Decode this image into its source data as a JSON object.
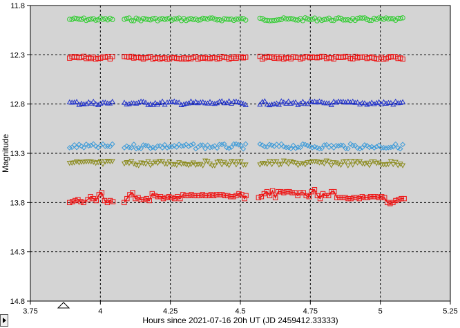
{
  "chart_data": {
    "type": "scatter",
    "xlabel": "Hours since 2021-07-16 20h UT (JD 2459412.33333)",
    "ylabel": "Magnitude",
    "xlim": [
      3.75,
      5.25
    ],
    "ylim": [
      14.8,
      11.8
    ],
    "y_inverted": true,
    "x_ticks": [
      "3.75",
      "4",
      "4.25",
      "4.5",
      "4.75",
      "5",
      "5.25"
    ],
    "y_ticks": [
      "11.8",
      "12.3",
      "12.8",
      "13.3",
      "13.8",
      "14.3",
      "14.8"
    ],
    "grid": true,
    "background_color": "#d4d4d4",
    "x_start": 3.89,
    "x_end": 5.085,
    "x_step": 0.0085,
    "gaps": [
      [
        4.05,
        4.085
      ],
      [
        4.52,
        4.565
      ]
    ],
    "series": [
      {
        "marker": "circle",
        "color": "#2ecc2e",
        "base": 11.94,
        "jitter": 0.015,
        "line": false
      },
      {
        "marker": "square",
        "color": "#ee1111",
        "base": 12.33,
        "jitter": 0.015,
        "line": false
      },
      {
        "marker": "triangle",
        "color": "#2233cc",
        "base": 12.79,
        "jitter": 0.02,
        "line": false
      },
      {
        "marker": "diamond",
        "color": "#3a9ad9",
        "base": 13.23,
        "jitter": 0.025,
        "line": false
      },
      {
        "marker": "triangle-down",
        "color": "#8a8a1a",
        "base": 13.4,
        "jitter": 0.025,
        "line": false
      },
      {
        "marker": "square",
        "color": "#ee1111",
        "line": true,
        "points": [
          [
            3.89,
            13.8
          ],
          [
            3.9,
            13.79
          ],
          [
            3.91,
            13.78
          ],
          [
            3.92,
            13.77
          ],
          [
            3.93,
            13.79
          ],
          [
            3.94,
            13.8
          ],
          [
            3.955,
            13.77
          ],
          [
            3.965,
            13.74
          ],
          [
            3.975,
            13.76
          ],
          [
            3.985,
            13.78
          ],
          [
            3.995,
            13.72
          ],
          [
            4.005,
            13.7
          ],
          [
            4.015,
            13.78
          ],
          [
            4.025,
            13.8
          ],
          [
            4.035,
            13.78
          ],
          [
            4.045,
            13.79
          ],
          [
            4.085,
            13.8
          ],
          [
            4.095,
            13.76
          ],
          [
            4.105,
            13.72
          ],
          [
            4.115,
            13.7
          ],
          [
            4.125,
            13.76
          ],
          [
            4.135,
            13.75
          ],
          [
            4.145,
            13.77
          ],
          [
            4.155,
            13.77
          ],
          [
            4.165,
            13.76
          ],
          [
            4.175,
            13.78
          ],
          [
            4.185,
            13.71
          ],
          [
            4.195,
            13.73
          ],
          [
            4.205,
            13.74
          ],
          [
            4.215,
            13.74
          ],
          [
            4.225,
            13.76
          ],
          [
            4.235,
            13.75
          ],
          [
            4.245,
            13.74
          ],
          [
            4.255,
            13.75
          ],
          [
            4.265,
            13.76
          ],
          [
            4.275,
            13.74
          ],
          [
            4.285,
            13.76
          ],
          [
            4.295,
            13.72
          ],
          [
            4.305,
            13.73
          ],
          [
            4.315,
            13.73
          ],
          [
            4.325,
            13.72
          ],
          [
            4.335,
            13.73
          ],
          [
            4.345,
            13.73
          ],
          [
            4.355,
            13.73
          ],
          [
            4.365,
            13.72
          ],
          [
            4.375,
            13.73
          ],
          [
            4.385,
            13.73
          ],
          [
            4.395,
            13.72
          ],
          [
            4.405,
            13.73
          ],
          [
            4.415,
            13.72
          ],
          [
            4.425,
            13.72
          ],
          [
            4.435,
            13.72
          ],
          [
            4.445,
            13.73
          ],
          [
            4.455,
            13.73
          ],
          [
            4.465,
            13.74
          ],
          [
            4.475,
            13.74
          ],
          [
            4.485,
            13.73
          ],
          [
            4.495,
            13.71
          ],
          [
            4.505,
            13.72
          ],
          [
            4.515,
            13.76
          ],
          [
            4.52,
            13.73
          ],
          [
            4.565,
            13.75
          ],
          [
            4.575,
            13.74
          ],
          [
            4.585,
            13.71
          ],
          [
            4.595,
            13.69
          ],
          [
            4.605,
            13.73
          ],
          [
            4.615,
            13.68
          ],
          [
            4.625,
            13.75
          ],
          [
            4.635,
            13.69
          ],
          [
            4.645,
            13.69
          ],
          [
            4.655,
            13.7
          ],
          [
            4.665,
            13.69
          ],
          [
            4.675,
            13.69
          ],
          [
            4.685,
            13.7
          ],
          [
            4.695,
            13.7
          ],
          [
            4.705,
            13.73
          ],
          [
            4.715,
            13.7
          ],
          [
            4.725,
            13.7
          ],
          [
            4.735,
            13.73
          ],
          [
            4.745,
            13.74
          ],
          [
            4.755,
            13.69
          ],
          [
            4.765,
            13.67
          ],
          [
            4.775,
            13.73
          ],
          [
            4.785,
            13.76
          ],
          [
            4.795,
            13.71
          ],
          [
            4.805,
            13.73
          ],
          [
            4.815,
            13.73
          ],
          [
            4.825,
            13.69
          ],
          [
            4.835,
            13.69
          ],
          [
            4.845,
            13.75
          ],
          [
            4.855,
            13.75
          ],
          [
            4.865,
            13.75
          ],
          [
            4.875,
            13.75
          ],
          [
            4.885,
            13.76
          ],
          [
            4.895,
            13.76
          ],
          [
            4.905,
            13.75
          ],
          [
            4.915,
            13.75
          ],
          [
            4.925,
            13.76
          ],
          [
            4.935,
            13.74
          ],
          [
            4.945,
            13.75
          ],
          [
            4.955,
            13.75
          ],
          [
            4.965,
            13.74
          ],
          [
            4.975,
            13.74
          ],
          [
            4.985,
            13.74
          ],
          [
            4.995,
            13.75
          ],
          [
            5.005,
            13.74
          ],
          [
            5.015,
            13.75
          ],
          [
            5.025,
            13.8
          ],
          [
            5.035,
            13.81
          ],
          [
            5.045,
            13.8
          ],
          [
            5.055,
            13.78
          ],
          [
            5.065,
            13.77
          ],
          [
            5.075,
            13.76
          ],
          [
            5.085,
            13.76
          ]
        ]
      }
    ]
  }
}
